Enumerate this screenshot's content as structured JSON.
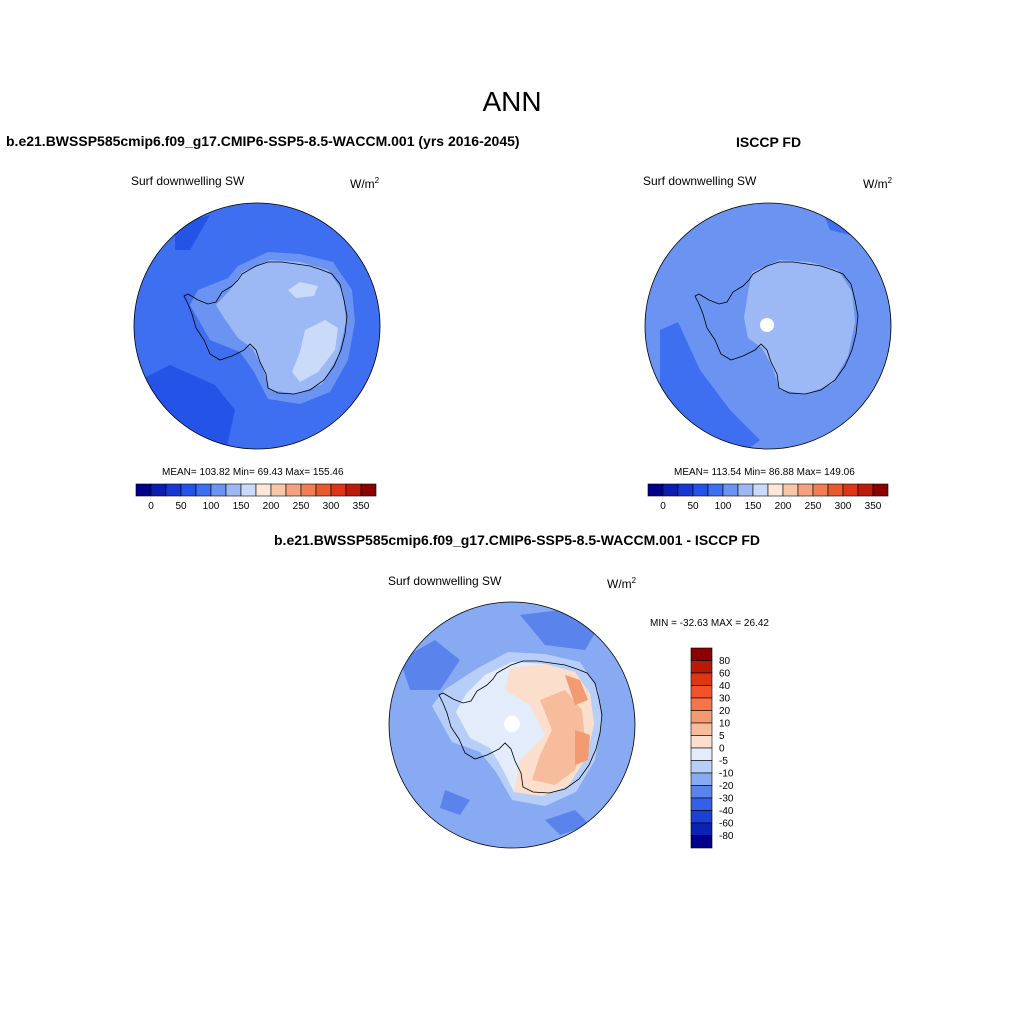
{
  "main_title": "ANN",
  "panel_left": {
    "title": "b.e21.BWSSP585cmip6.f09_g17.CMIP6-SSP5-8.5-WACCM.001 (yrs 2016-2045)",
    "var_label": "Surf downwelling SW",
    "units": "W/m",
    "units_sup": "2",
    "stats": "MEAN= 103.82  Min=  69.43  Max= 155.46"
  },
  "panel_right": {
    "title": "ISCCP FD",
    "var_label": "Surf downwelling SW",
    "units": "W/m",
    "units_sup": "2",
    "stats": "MEAN= 113.54  Min=  86.88  Max= 149.06"
  },
  "panel_diff": {
    "title": "b.e21.BWSSP585cmip6.f09_g17.CMIP6-SSP5-8.5-WACCM.001 - ISCCP FD",
    "var_label": "Surf downwelling SW",
    "units": "W/m",
    "units_sup": "2",
    "stats": "MIN = -32.63 MAX =  26.42"
  },
  "colorbar_abs": {
    "colors": [
      "#00008c",
      "#0a1fb0",
      "#1639d4",
      "#2453e8",
      "#3d6ff0",
      "#6b93f2",
      "#9cb8f5",
      "#c9dbf9",
      "#fbe7da",
      "#f8c6ab",
      "#f4a280",
      "#ef7d56",
      "#e8592e",
      "#db3615",
      "#bb1c09",
      "#8c0000"
    ],
    "tick_labels": [
      "0",
      "50",
      "100",
      "150",
      "200",
      "250",
      "300",
      "350"
    ]
  },
  "colorbar_diff": {
    "colors": [
      "#8c0000",
      "#b81a08",
      "#de3512",
      "#f2522a",
      "#f47547",
      "#f49a71",
      "#f6bc9c",
      "#fbdfcc",
      "#e3ecfb",
      "#b7cff8",
      "#87aaf2",
      "#5a83ec",
      "#3360e6",
      "#1a40d6",
      "#0a23b4",
      "#00008c"
    ],
    "tick_labels": [
      "80",
      "60",
      "40",
      "30",
      "20",
      "10",
      "5",
      "0",
      "-5",
      "-10",
      "-20",
      "-30",
      "-40",
      "-60",
      "-80"
    ]
  },
  "map_colors": {
    "ocean_left": "#3d6ff0",
    "ocean_left_dark": "#2453e8",
    "coast_left": "#6b93f2",
    "ice_left": "#9cb8f5",
    "ice_left_light": "#c9dbf9",
    "ocean_right": "#6b93f2",
    "ocean_right_dark": "#3d6ff0",
    "ice_right": "#9cb8f5",
    "pole_hole": "#ffffff",
    "diff_ocean": "#87aaf2",
    "diff_ocean_dark": "#5a83ec",
    "diff_coast": "#b7cff8",
    "diff_ice_pale": "#e3ecfb",
    "diff_pos1": "#fbdfcc",
    "diff_pos2": "#f6bc9c",
    "diff_pos3": "#f49a71"
  }
}
